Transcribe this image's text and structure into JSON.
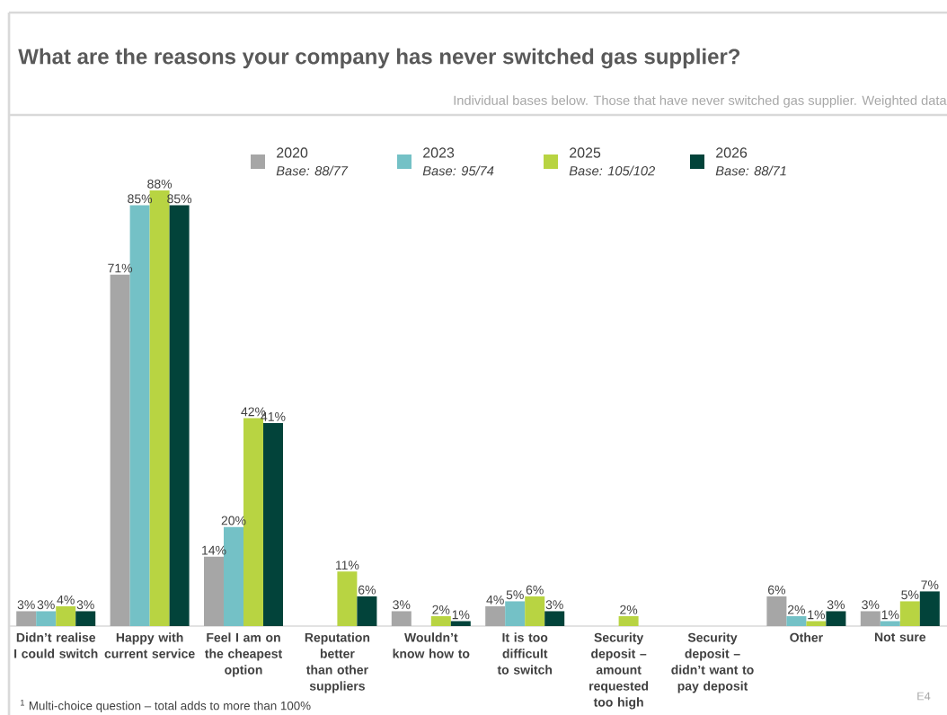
{
  "chart_data": {
    "type": "bar",
    "title": "What are the reasons your company has never switched gas supplier?",
    "subtitle": "Individual bases below. Those that have never switched gas supplier. Weighted data",
    "categories": [
      "Didn’t realise I could switch",
      "Happy with current service",
      "Feel I am on the cheapest option",
      "Reputation better than other suppliers",
      "Wouldn’t know how to",
      "It is too difficult to switch",
      "Security deposit – amount requested too high",
      "Security deposit – didn’t want to pay deposit",
      "Other",
      "Not sure"
    ],
    "series": [
      {
        "name": "2020",
        "color": "#a6a6a6",
        "values": [
          3,
          71,
          14,
          null,
          3,
          4,
          null,
          null,
          6,
          3
        ],
        "value_labels": [
          "3%",
          "71%",
          "14%",
          null,
          "3%",
          "4%",
          null,
          null,
          "6%",
          "3%"
        ]
      },
      {
        "name": "2023",
        "color": "#74c1c6",
        "values": [
          3,
          85,
          20,
          null,
          null,
          5,
          null,
          null,
          2,
          1
        ],
        "value_labels": [
          "3%",
          "85%",
          "20%",
          null,
          null,
          "5%",
          null,
          null,
          "2%",
          "1%"
        ]
      },
      {
        "name": "2025",
        "color": "#b8d442",
        "values": [
          4,
          88,
          42,
          11,
          2,
          6,
          2,
          null,
          1,
          5
        ],
        "value_labels": [
          "4%",
          "88%",
          "42%",
          "11%",
          "2%",
          "6%",
          "2%",
          null,
          "1%",
          "5%"
        ]
      },
      {
        "name": "2026",
        "color": "#02433a",
        "values": [
          3,
          85,
          41,
          6,
          1,
          3,
          null,
          null,
          3,
          7
        ],
        "value_labels": [
          "3%",
          "85%",
          "41%",
          "6%",
          "1%",
          "3%",
          null,
          null,
          "3%",
          "7%"
        ]
      }
    ],
    "annotations": [
      "Base: 88/77",
      "Base: 95/74",
      "Base: 105/102",
      "Base: 88/71",
      "$^{1}$ Multi-choice question – total adds to more than 100%",
      "E4"
    ],
    "legend": "top"
  }
}
